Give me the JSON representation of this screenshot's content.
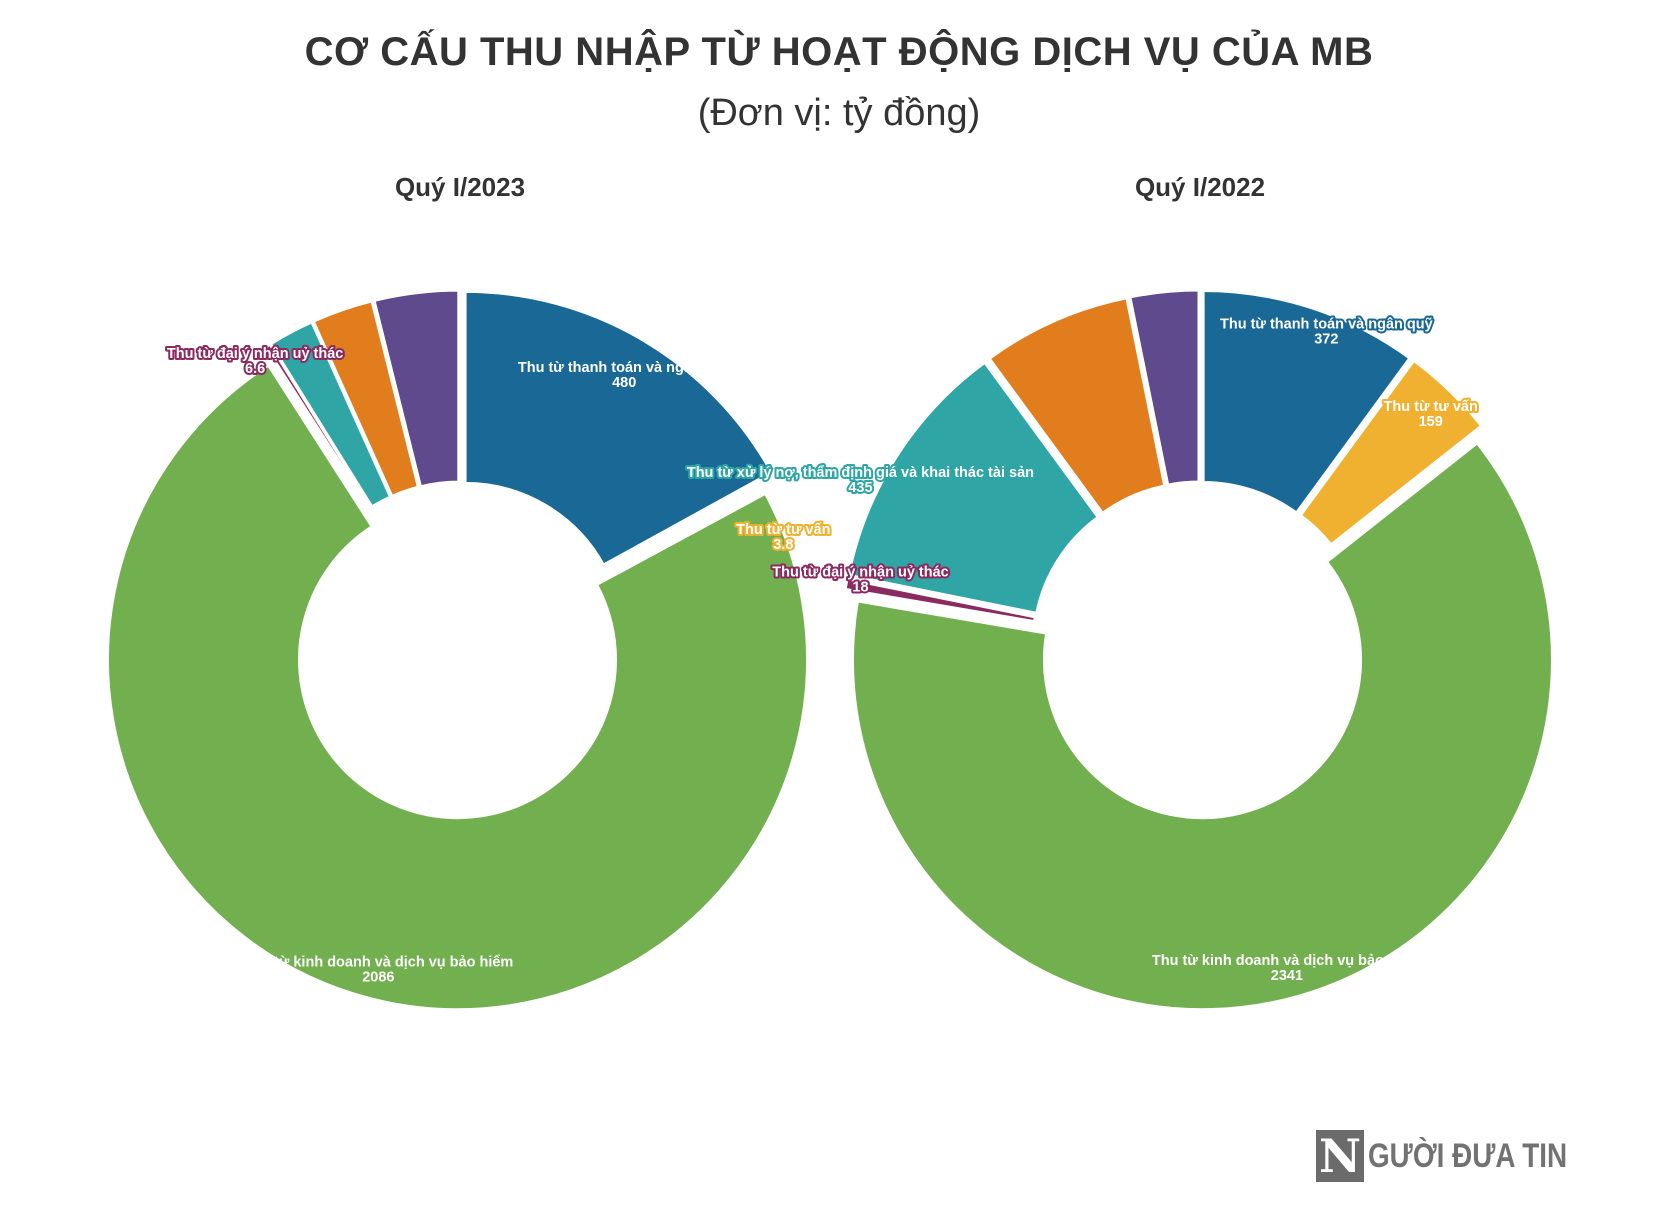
{
  "title": "CƠ CẤU THU NHẬP TỪ HOẠT ĐỘNG DỊCH VỤ CỦA MB",
  "subtitle": "(Đơn vị: tỷ đồng)",
  "logo": {
    "text": "GƯỜI ĐƯA TIN",
    "letter": "N"
  },
  "chart_data": [
    {
      "type": "donut",
      "title": "Quý I/2023",
      "unit": "tỷ đồng",
      "segments": [
        {
          "name": "Thu từ thanh toán và ngân quỹ",
          "value": 480,
          "value_label": "480",
          "color": "#1a6896",
          "show_label": true
        },
        {
          "name": "Thu từ tư vấn",
          "value": 3.8,
          "value_label": "3.8",
          "color": "#efb12f",
          "show_label": true
        },
        {
          "name": "Thu từ kinh doanh và dịch vụ bảo hiểm",
          "value": 2086,
          "value_label": "2086",
          "color": "#72af4f",
          "show_label": true
        },
        {
          "name": "Thu từ đại ý nhận uỷ thác",
          "value": 6.6,
          "value_label": "6.6",
          "color": "#8b2a60",
          "show_label": true
        },
        {
          "name": "",
          "value": 60,
          "value_label": "",
          "color": "#2fa5a5",
          "show_label": false
        },
        {
          "name": "",
          "value": 80,
          "value_label": "",
          "color": "#e27d1d",
          "show_label": false
        },
        {
          "name": "",
          "value": 110,
          "value_label": "",
          "color": "#604a8e",
          "show_label": false
        }
      ]
    },
    {
      "type": "donut",
      "title": "Quý I/2022",
      "unit": "tỷ đồng",
      "segments": [
        {
          "name": "Thu từ thanh toán và ngân quỹ",
          "value": 372,
          "value_label": "372",
          "color": "#1a6896",
          "show_label": true
        },
        {
          "name": "Thu từ tư vấn",
          "value": 159,
          "value_label": "159",
          "color": "#efb12f",
          "show_label": true
        },
        {
          "name": "Thu từ kinh doanh và dịch vụ bảo hiểm",
          "value": 2341,
          "value_label": "2341",
          "color": "#72af4f",
          "show_label": true
        },
        {
          "name": "Thu từ đại ý nhận uỷ thác",
          "value": 18,
          "value_label": "18",
          "color": "#8b2a60",
          "show_label": true
        },
        {
          "name": "Thu từ xử lý nợ, thẩm định giá và khai thác tài sản",
          "value": 435,
          "value_label": "435",
          "color": "#2fa5a5",
          "show_label": true
        },
        {
          "name": "",
          "value": 255,
          "value_label": "",
          "color": "#e27d1d",
          "show_label": false
        },
        {
          "name": "",
          "value": 117,
          "value_label": "",
          "color": "#604a8e",
          "show_label": false
        }
      ]
    }
  ]
}
